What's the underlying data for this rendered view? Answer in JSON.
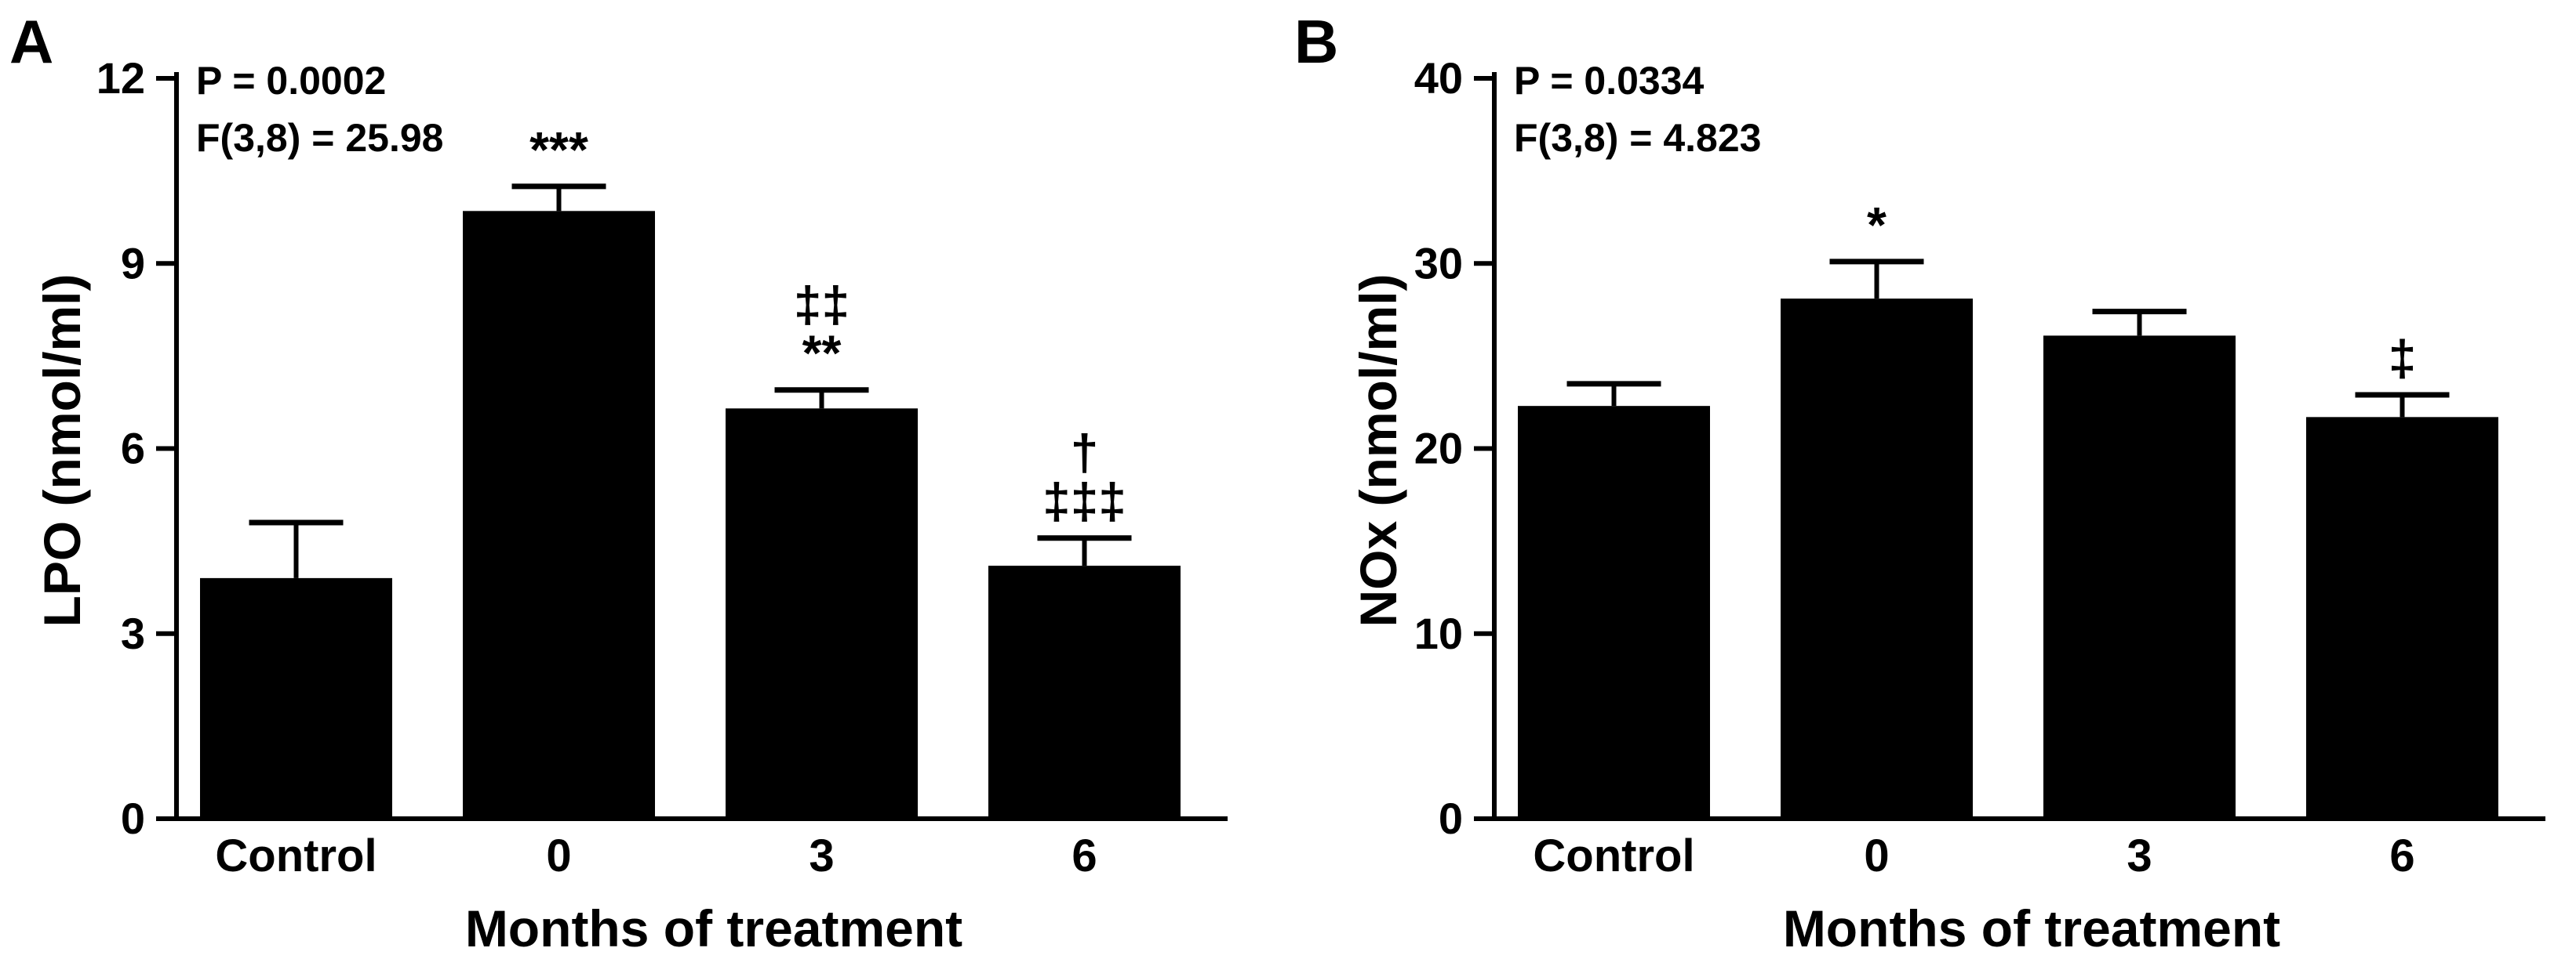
{
  "chart_data": [
    {
      "panel": "A",
      "type": "bar",
      "stats": [
        "P = 0.0002",
        "F(3,8) = 25.98"
      ],
      "categories": [
        "Control",
        "0",
        "3",
        "6"
      ],
      "values": [
        3.9,
        9.85,
        6.65,
        4.1
      ],
      "errors": [
        0.9,
        0.4,
        0.3,
        0.45
      ],
      "annotations": [
        [],
        [
          "***"
        ],
        [
          "‡‡",
          "**"
        ],
        [
          "†",
          "‡‡‡"
        ]
      ],
      "xlabel": "Months of treatment",
      "ylabel": "LPO (nmol/ml)",
      "ylim": [
        0,
        12
      ],
      "yticks": [
        0,
        3,
        6,
        9,
        12
      ],
      "color": "#000000"
    },
    {
      "panel": "B",
      "type": "bar",
      "stats": [
        "P = 0.0334",
        "F(3,8) = 4.823"
      ],
      "categories": [
        "Control",
        "0",
        "3",
        "6"
      ],
      "values": [
        22.3,
        28.1,
        26.1,
        21.7
      ],
      "errors": [
        1.2,
        2.0,
        1.3,
        1.2
      ],
      "annotations": [
        [],
        [
          "*"
        ],
        [],
        [
          "‡"
        ]
      ],
      "xlabel": "Months of treatment",
      "ylabel": "NOx (nmol/ml)",
      "ylim": [
        0,
        40
      ],
      "yticks": [
        0,
        10,
        20,
        30,
        40
      ],
      "color": "#000000"
    }
  ]
}
